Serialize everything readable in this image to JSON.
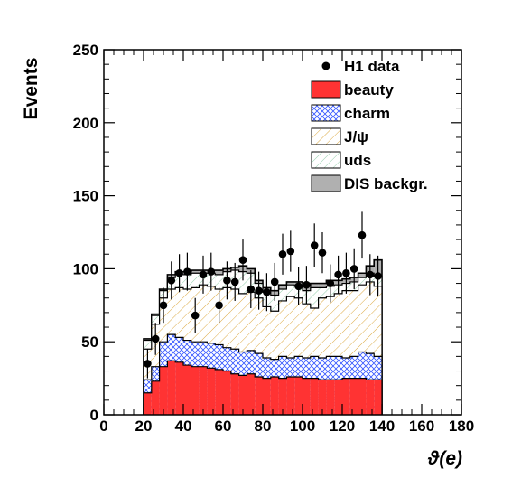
{
  "chart_data": {
    "type": "histogram",
    "xlabel": "ϑ(e)",
    "ylabel": "Events",
    "xlim": [
      0,
      180
    ],
    "ylim": [
      0,
      250
    ],
    "x_ticks": [
      "0",
      "20",
      "40",
      "60",
      "80",
      "100",
      "120",
      "140",
      "160",
      "180"
    ],
    "y_ticks": [
      "0",
      "50",
      "100",
      "150",
      "200",
      "250"
    ],
    "bin_edges": [
      20,
      24,
      28,
      32,
      36,
      40,
      44,
      48,
      52,
      56,
      60,
      64,
      68,
      72,
      76,
      80,
      84,
      88,
      92,
      96,
      100,
      104,
      108,
      112,
      116,
      120,
      124,
      128,
      132,
      136,
      140
    ],
    "stack_order": [
      "beauty",
      "charm",
      "J/ψ",
      "uds",
      "DIS backgr."
    ],
    "series": [
      {
        "name": "beauty",
        "color": "#ff3333",
        "pattern": "solid",
        "cumulative": [
          15,
          23,
          33,
          37,
          36,
          34,
          33,
          33,
          32,
          31,
          30,
          28,
          27,
          28,
          26,
          25,
          26,
          25,
          26,
          26,
          25,
          25,
          24,
          24,
          24,
          25,
          25,
          25,
          24,
          24
        ]
      },
      {
        "name": "charm",
        "color": "#3355ff",
        "pattern": "crosshatch",
        "cumulative": [
          24,
          33,
          50,
          55,
          53,
          51,
          50,
          50,
          49,
          48,
          46,
          45,
          43,
          44,
          42,
          39,
          38,
          40,
          39,
          40,
          39,
          40,
          39,
          40,
          40,
          39,
          40,
          43,
          42,
          40
        ]
      },
      {
        "name": "J/ψ",
        "color": "#ddaa44",
        "pattern": "hatch",
        "cumulative": [
          45,
          62,
          80,
          86,
          87,
          86,
          87,
          89,
          88,
          86,
          87,
          86,
          83,
          84,
          80,
          74,
          71,
          78,
          81,
          80,
          76,
          73,
          80,
          81,
          83,
          85,
          85,
          89,
          91,
          88
        ]
      },
      {
        "name": "uds",
        "color": "#55aa77",
        "pattern": "lighthatch",
        "cumulative": [
          51,
          68,
          85,
          94,
          96,
          96,
          97,
          97,
          97,
          96,
          98,
          99,
          98,
          97,
          90,
          84,
          82,
          86,
          89,
          88,
          85,
          87,
          87,
          88,
          89,
          90,
          91,
          94,
          97,
          95
        ]
      },
      {
        "name": "DIS backgr.",
        "color": "#b0b0b0",
        "pattern": "solid",
        "cumulative": [
          52,
          69,
          86,
          96,
          98,
          98,
          99,
          99,
          99,
          99,
          100,
          101,
          102,
          100,
          92,
          87,
          85,
          89,
          91,
          91,
          88,
          90,
          90,
          92,
          92,
          93,
          94,
          97,
          102,
          106
        ]
      }
    ],
    "data_points": {
      "name": "H1 data",
      "x": [
        22,
        26,
        30,
        34,
        38,
        42,
        46,
        50,
        54,
        58,
        62,
        66,
        70,
        74,
        78,
        82,
        86,
        90,
        94,
        98,
        102,
        106,
        110,
        114,
        118,
        122,
        126,
        130,
        134,
        138
      ],
      "y": [
        35,
        52,
        75,
        92,
        97,
        98,
        68,
        96,
        98,
        75,
        92,
        91,
        106,
        86,
        85,
        84,
        91,
        110,
        112,
        88,
        89,
        116,
        111,
        90,
        96,
        97,
        100,
        123,
        96,
        95
      ],
      "yerr": [
        10,
        11,
        12,
        13,
        13,
        13,
        12,
        13,
        13,
        12,
        13,
        13,
        14,
        13,
        13,
        13,
        13,
        14,
        14,
        13,
        13,
        15,
        14,
        13,
        13,
        14,
        14,
        16,
        14,
        14
      ]
    },
    "legend": {
      "placement": "top-right",
      "entries": [
        "H1 data",
        "beauty",
        "charm",
        "J/ψ",
        "uds",
        "DIS backgr."
      ]
    }
  }
}
